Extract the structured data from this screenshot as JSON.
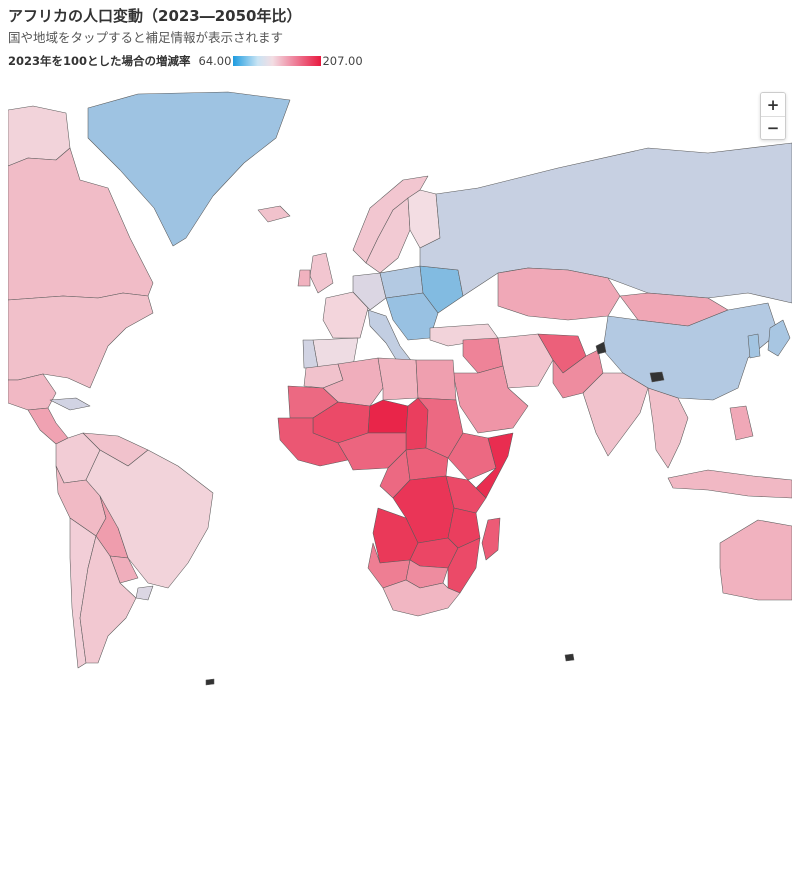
{
  "header": {
    "title": "アフリカの人口変動（2023―2050年比）",
    "subtitle": "国や地域をタップすると補足情報が表示されます"
  },
  "legend": {
    "title": "2023年を100とした場合の増減率",
    "min_label": "64.00",
    "max_label": "207.00",
    "min_value": 64,
    "max_value": 207,
    "color_low": "#1e9ce0",
    "color_mid": "#f3dde3",
    "color_high": "#e8193f"
  },
  "map": {
    "type": "choropleth",
    "projection": "Mercator",
    "ocean_color": "#ffffff",
    "no_data_color": "#333333",
    "countries": [
      {
        "id": "greenland",
        "index": 83
      },
      {
        "id": "alaska",
        "index": 104
      },
      {
        "id": "canada",
        "index": 115
      },
      {
        "id": "usa",
        "index": 113
      },
      {
        "id": "mexico",
        "index": 117
      },
      {
        "id": "central-america",
        "index": 128
      },
      {
        "id": "cuba",
        "index": 93
      },
      {
        "id": "colombia",
        "index": 107
      },
      {
        "id": "venezuela",
        "index": 112
      },
      {
        "id": "peru",
        "index": 116
      },
      {
        "id": "bolivia",
        "index": 131
      },
      {
        "id": "brazil",
        "index": 104
      },
      {
        "id": "paraguay",
        "index": 122
      },
      {
        "id": "uruguay",
        "index": 95
      },
      {
        "id": "argentina",
        "index": 109
      },
      {
        "id": "chile",
        "index": 106
      },
      {
        "id": "iceland",
        "index": 112
      },
      {
        "id": "uk",
        "index": 110
      },
      {
        "id": "ireland",
        "index": 120
      },
      {
        "id": "norway",
        "index": 110
      },
      {
        "id": "sweden",
        "index": 108
      },
      {
        "id": "finland",
        "index": 100
      },
      {
        "id": "france",
        "index": 103
      },
      {
        "id": "spain",
        "index": 99
      },
      {
        "id": "portugal",
        "index": 93
      },
      {
        "id": "germany",
        "index": 95
      },
      {
        "id": "italy",
        "index": 90
      },
      {
        "id": "poland",
        "index": 87
      },
      {
        "id": "ukraine",
        "index": 78
      },
      {
        "id": "balkans",
        "index": 82
      },
      {
        "id": "russia",
        "index": 91
      },
      {
        "id": "turkey",
        "index": 104
      },
      {
        "id": "kazakhstan",
        "index": 125
      },
      {
        "id": "mongolia",
        "index": 126
      },
      {
        "id": "china",
        "index": 87
      },
      {
        "id": "iran",
        "index": 111
      },
      {
        "id": "iraq",
        "index": 145
      },
      {
        "id": "saudi-arabia",
        "index": 135
      },
      {
        "id": "afghanistan",
        "index": 165
      },
      {
        "id": "pakistan",
        "index": 140
      },
      {
        "id": "india",
        "index": 112
      },
      {
        "id": "japan",
        "index": 85
      },
      {
        "id": "korea",
        "index": 84
      },
      {
        "id": "southeast-asia",
        "index": 113
      },
      {
        "id": "indonesia",
        "index": 117
      },
      {
        "id": "philippines",
        "index": 125
      },
      {
        "id": "australia",
        "index": 120
      },
      {
        "id": "morocco",
        "index": 112
      },
      {
        "id": "algeria",
        "index": 122
      },
      {
        "id": "libya",
        "index": 119
      },
      {
        "id": "egypt",
        "index": 130
      },
      {
        "id": "mauritania",
        "index": 160
      },
      {
        "id": "mali",
        "index": 178
      },
      {
        "id": "niger",
        "index": 200
      },
      {
        "id": "chad",
        "index": 185
      },
      {
        "id": "sudan",
        "index": 160
      },
      {
        "id": "ethiopia",
        "index": 160
      },
      {
        "id": "somalia",
        "index": 195
      },
      {
        "id": "west-africa-coast",
        "index": 170
      },
      {
        "id": "nigeria",
        "index": 162
      },
      {
        "id": "cameroon",
        "index": 160
      },
      {
        "id": "car",
        "index": 165
      },
      {
        "id": "drc",
        "index": 190
      },
      {
        "id": "east-africa",
        "index": 178
      },
      {
        "id": "angola",
        "index": 188
      },
      {
        "id": "zambia",
        "index": 180
      },
      {
        "id": "tanzania",
        "index": 185
      },
      {
        "id": "mozambique",
        "index": 178
      },
      {
        "id": "madagascar",
        "index": 168
      },
      {
        "id": "namibia",
        "index": 148
      },
      {
        "id": "botswana",
        "index": 140
      },
      {
        "id": "south-africa",
        "index": 118
      }
    ]
  },
  "zoom": {
    "in_label": "+",
    "out_label": "−"
  }
}
